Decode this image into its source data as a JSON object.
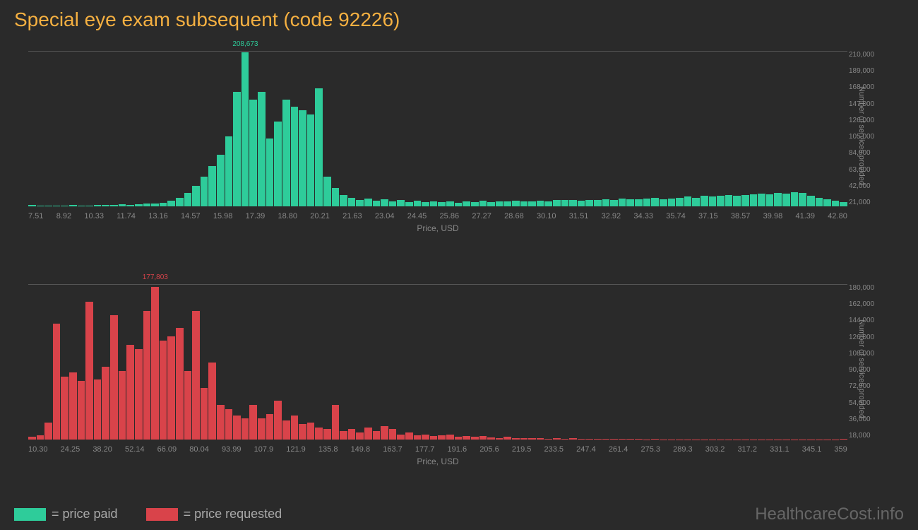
{
  "title": "Special eye exam subsequent (code 92226)",
  "background_color": "#2a2a2a",
  "title_color": "#f5b041",
  "axis_text_color": "#888888",
  "chart_top": {
    "type": "histogram",
    "bar_color": "#2ecc9a",
    "peak_value": "208,673",
    "peak_index": 26,
    "x_label": "Price, USD",
    "y_label": "Number of services provided",
    "x_ticks": [
      "7.51",
      "8.92",
      "10.33",
      "11.74",
      "13.16",
      "14.57",
      "15.98",
      "17.39",
      "18.80",
      "20.21",
      "21.63",
      "23.04",
      "24.45",
      "25.86",
      "27.27",
      "28.68",
      "30.10",
      "31.51",
      "32.92",
      "34.33",
      "35.74",
      "37.15",
      "38.57",
      "39.98",
      "41.39",
      "42.80"
    ],
    "y_ticks": [
      "210,000",
      "189,000",
      "168,000",
      "147,000",
      "126,000",
      "105,000",
      "84,000",
      "63,000",
      "42,000",
      "21,000"
    ],
    "y_max": 210000,
    "values": [
      2000,
      1000,
      500,
      1000,
      500,
      1500,
      500,
      1000,
      1500,
      2000,
      1500,
      2500,
      2000,
      3000,
      3500,
      4000,
      5000,
      8000,
      12000,
      18000,
      28000,
      40000,
      55000,
      70000,
      95000,
      155000,
      208673,
      145000,
      155000,
      92000,
      115000,
      145000,
      135000,
      130000,
      125000,
      160000,
      40000,
      25000,
      15000,
      12000,
      9000,
      11000,
      8000,
      10000,
      7000,
      9000,
      6000,
      8000,
      6000,
      7000,
      5500,
      7000,
      5000,
      6500,
      6000,
      7500,
      6000,
      6500,
      7000,
      8000,
      7000,
      6500,
      8000,
      7000,
      9000,
      8500,
      9000,
      7500,
      9000,
      8500,
      10000,
      9000,
      11000,
      10000,
      9500,
      11000,
      12000,
      10000,
      11000,
      12000,
      13000,
      12000,
      14000,
      13000,
      14000,
      15000,
      14000,
      15000,
      16000,
      17000,
      16000,
      18000,
      17000,
      19000,
      18000,
      14000,
      12000,
      10000,
      8000,
      6000
    ]
  },
  "chart_bottom": {
    "type": "histogram",
    "bar_color": "#d9434a",
    "peak_value": "177,803",
    "peak_index": 15,
    "x_label": "Price, USD",
    "y_label": "Number of services provided",
    "x_ticks": [
      "10.30",
      "24.25",
      "38.20",
      "52.14",
      "66.09",
      "80.04",
      "93.99",
      "107.9",
      "121.9",
      "135.8",
      "149.8",
      "163.7",
      "177.7",
      "191.6",
      "205.6",
      "219.5",
      "233.5",
      "247.4",
      "261.4",
      "275.3",
      "289.3",
      "303.2",
      "317.2",
      "331.1",
      "345.1",
      "359"
    ],
    "y_ticks": [
      "180,000",
      "162,000",
      "144,000",
      "126,000",
      "108,000",
      "90,000",
      "72,000",
      "54,000",
      "36,000",
      "18,000"
    ],
    "y_max": 180000,
    "values": [
      3000,
      5000,
      20000,
      135000,
      73000,
      78000,
      68000,
      160000,
      70000,
      85000,
      145000,
      80000,
      110000,
      105000,
      150000,
      177803,
      115000,
      120000,
      130000,
      80000,
      150000,
      60000,
      90000,
      40000,
      35000,
      28000,
      25000,
      40000,
      25000,
      30000,
      45000,
      22000,
      28000,
      18000,
      20000,
      14000,
      12000,
      40000,
      10000,
      12000,
      8000,
      14000,
      10000,
      16000,
      12000,
      6000,
      8000,
      5000,
      6000,
      4000,
      5000,
      6000,
      3000,
      4000,
      3000,
      4000,
      2500,
      2000,
      3000,
      2000,
      1500,
      2000,
      1500,
      1200,
      1500,
      1000,
      1500,
      1000,
      1200,
      800,
      1000,
      600,
      800,
      500,
      600,
      400,
      500,
      400,
      300,
      400,
      300,
      400,
      300,
      200,
      300,
      400,
      300,
      200,
      300,
      200,
      300,
      200,
      300,
      200,
      300,
      200,
      300,
      400,
      300,
      800
    ]
  },
  "legend": {
    "green_label": "= price paid",
    "green_color": "#2ecc9a",
    "red_label": "= price requested",
    "red_color": "#d9434a"
  },
  "watermark": "HealthcareCost.info"
}
